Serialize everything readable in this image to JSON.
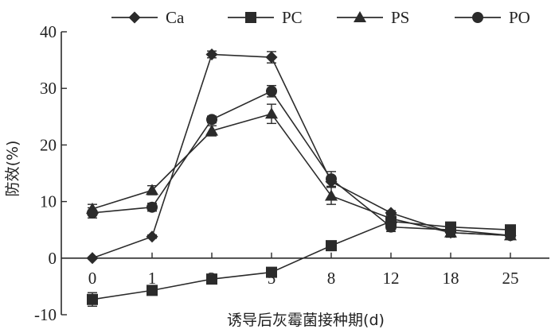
{
  "chart_data": {
    "type": "line",
    "categories": [
      "0",
      "1",
      "3",
      "5",
      "8",
      "12",
      "18",
      "25"
    ],
    "ylabel": "防效(%)",
    "xlabel": "诱导后灰霉菌接种期(d)",
    "ylim": [
      -10,
      40
    ],
    "yticks": [
      "-10",
      "0",
      "10",
      "20",
      "30",
      "40"
    ],
    "legend_position": "top",
    "grid": false,
    "series": [
      {
        "name": "Ca",
        "marker": "diamond",
        "values": [
          0,
          3.8,
          36,
          35.5,
          13.5,
          8,
          4.5,
          4
        ],
        "error": [
          0,
          0.3,
          0.6,
          1,
          1,
          0.4,
          0.4,
          0.4
        ]
      },
      {
        "name": "PC",
        "marker": "square",
        "values": [
          -7.3,
          -5.7,
          -3.7,
          -2.5,
          2.2,
          6.5,
          5.5,
          5
        ],
        "error": [
          1.2,
          0.6,
          0.5,
          0.4,
          0.4,
          0.4,
          0.7,
          0.5
        ]
      },
      {
        "name": "PS",
        "marker": "triangle",
        "values": [
          8.7,
          12,
          22.5,
          25.5,
          11,
          7,
          4.5,
          4
        ],
        "error": [
          0.8,
          0.8,
          0.9,
          1.7,
          1.5,
          0.8,
          0.8,
          0.5
        ]
      },
      {
        "name": "PO",
        "marker": "circle",
        "values": [
          8,
          9,
          24.5,
          29.5,
          14,
          5.5,
          5,
          4
        ],
        "error": [
          0.9,
          0.7,
          0.6,
          1,
          1.3,
          0.8,
          0.8,
          0.7
        ]
      }
    ]
  }
}
